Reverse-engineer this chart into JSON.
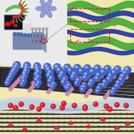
{
  "bg_yellow": "#f0e8b0",
  "bg_white": "#f0f0f0",
  "bg_top_left": "#e8e8e8",
  "green_wave": "#44aa33",
  "blue_dark_wave": "#2233aa",
  "blue_sphere": "#4466cc",
  "blue_sphere_dark": "#2244aa",
  "pink_sphere": "#cc88aa",
  "red_sphere": "#cc2233",
  "dark_sheet": "#1a1a2a",
  "dark_sheet2": "#222233",
  "graphene_bg": "#c8c8d8",
  "channel_blue": "#b8cce0",
  "channel_blue2": "#d0dcea",
  "yellow_bg_bottom": "#f0e8b0",
  "red_dashed": "#cc1122",
  "flower_blue": "#7788cc",
  "green_nanosheet": "#44aa33",
  "red_rod": "#cc3333",
  "container_top": "#99aabb",
  "container_front": "#7788aa",
  "container_side": "#8899bb",
  "arrow_gray": "#666677",
  "micro_bg": "#111122",
  "micro_red": "#cc2211",
  "funnel_gray": "#bbbbcc",
  "white": "#ffffff"
}
